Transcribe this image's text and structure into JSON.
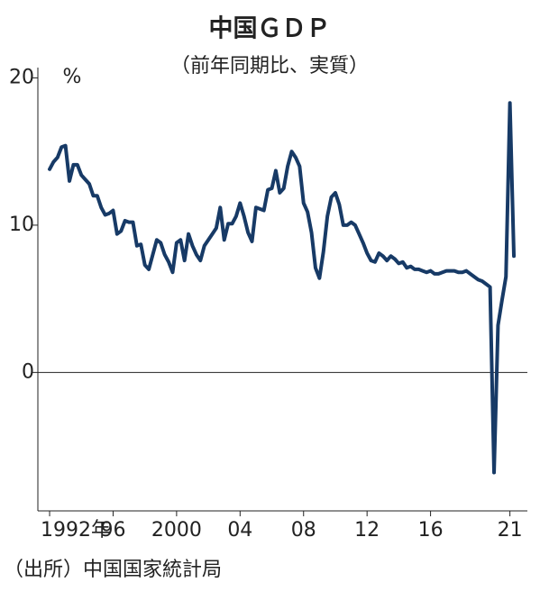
{
  "chart_data": {
    "type": "line",
    "title": "中国ＧＤＰ",
    "subtitle": "（前年同期比、実質）",
    "y_unit": "%",
    "source": "（出所）中国国家統計局",
    "xlim": [
      1991.26,
      2022.1
    ],
    "ylim": [
      -9.4,
      20.7
    ],
    "yticks": [
      0,
      10,
      20
    ],
    "xticks": [
      {
        "value": 1992,
        "label": "1992年"
      },
      {
        "value": 1996,
        "label": "96"
      },
      {
        "value": 2000,
        "label": "2000"
      },
      {
        "value": 2004,
        "label": "04"
      },
      {
        "value": 2008,
        "label": "08"
      },
      {
        "value": 2012,
        "label": "12"
      },
      {
        "value": 2016,
        "label": "16"
      },
      {
        "value": 2021,
        "label": "21"
      }
    ],
    "color": "#173a66",
    "x": [
      1992,
      1992.25,
      1992.5,
      1992.75,
      1993,
      1993.25,
      1993.5,
      1993.75,
      1994,
      1994.25,
      1994.5,
      1994.75,
      1995,
      1995.25,
      1995.5,
      1995.75,
      1996,
      1996.25,
      1996.5,
      1996.75,
      1997,
      1997.25,
      1997.5,
      1997.75,
      1998,
      1998.25,
      1998.5,
      1998.75,
      1999,
      1999.25,
      1999.5,
      1999.75,
      2000,
      2000.25,
      2000.5,
      2000.75,
      2001,
      2001.25,
      2001.5,
      2001.75,
      2002,
      2002.25,
      2002.5,
      2002.75,
      2003,
      2003.25,
      2003.5,
      2003.75,
      2004,
      2004.25,
      2004.5,
      2004.75,
      2005,
      2005.25,
      2005.5,
      2005.75,
      2006,
      2006.25,
      2006.5,
      2006.75,
      2007,
      2007.25,
      2007.5,
      2007.75,
      2008,
      2008.25,
      2008.5,
      2008.75,
      2009,
      2009.25,
      2009.5,
      2009.75,
      2010,
      2010.25,
      2010.5,
      2010.75,
      2011,
      2011.25,
      2011.5,
      2011.75,
      2012,
      2012.25,
      2012.5,
      2012.75,
      2013,
      2013.25,
      2013.5,
      2013.75,
      2014,
      2014.25,
      2014.5,
      2014.75,
      2015,
      2015.25,
      2015.5,
      2015.75,
      2016,
      2016.25,
      2016.5,
      2016.75,
      2017,
      2017.25,
      2017.5,
      2017.75,
      2018,
      2018.25,
      2018.5,
      2018.75,
      2019,
      2019.25,
      2019.5,
      2019.75,
      2020,
      2020.25,
      2020.5,
      2020.75,
      2021,
      2021.25
    ],
    "values": [
      13.8,
      14.3,
      14.6,
      15.3,
      15.4,
      13.0,
      14.1,
      14.1,
      13.4,
      13.1,
      12.8,
      12.0,
      12.0,
      11.2,
      10.7,
      10.8,
      11.0,
      9.4,
      9.6,
      10.3,
      10.2,
      10.2,
      8.6,
      8.7,
      7.3,
      7.0,
      8.0,
      9.0,
      8.8,
      8.0,
      7.5,
      6.8,
      8.8,
      9.0,
      7.6,
      9.4,
      8.6,
      8.0,
      7.6,
      8.6,
      9.0,
      9.4,
      9.8,
      11.2,
      9.0,
      10.1,
      10.1,
      10.6,
      11.5,
      10.6,
      9.5,
      8.9,
      11.2,
      11.1,
      11.0,
      12.4,
      12.5,
      13.7,
      12.2,
      12.5,
      14.0,
      15.0,
      14.6,
      14.0,
      11.5,
      10.9,
      9.5,
      7.1,
      6.4,
      8.2,
      10.6,
      11.9,
      12.2,
      11.4,
      10.0,
      10.0,
      10.2,
      10.0,
      9.4,
      8.8,
      8.1,
      7.6,
      7.5,
      8.1,
      7.9,
      7.6,
      7.9,
      7.7,
      7.4,
      7.5,
      7.1,
      7.2,
      7.0,
      7.0,
      6.9,
      6.8,
      6.9,
      6.7,
      6.7,
      6.8,
      6.9,
      6.9,
      6.9,
      6.8,
      6.8,
      6.9,
      6.7,
      6.5,
      6.3,
      6.2,
      6.0,
      5.8,
      -6.8,
      3.2,
      4.9,
      6.5,
      18.3,
      7.9
    ]
  }
}
